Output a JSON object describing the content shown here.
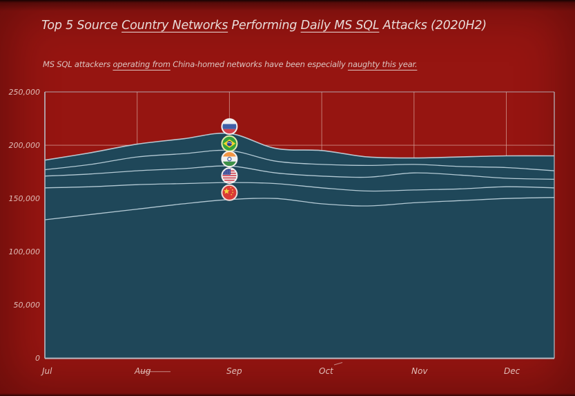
{
  "header": {
    "title_text": "Top 5 Source Country Networks Performing Daily MS SQL Attacks (2020H2)",
    "title_segments": [
      {
        "text": "Top 5 Source ",
        "underline": false
      },
      {
        "text": "Country Networks",
        "underline": true
      },
      {
        "text": " Performing ",
        "underline": false
      },
      {
        "text": "Daily MS SQL",
        "underline": true
      },
      {
        "text": " Attacks (2020H2)",
        "underline": false
      }
    ],
    "subtitle_text": "MS SQL attackers operating from China-homed networks have been especially naughty this year.",
    "subtitle_segments": [
      {
        "text": "MS SQL attackers ",
        "underline": false
      },
      {
        "text": "operating from",
        "underline": true
      },
      {
        "text": " China-homed networks have been especially ",
        "underline": false
      },
      {
        "text": "naughty this year.",
        "underline": true
      }
    ]
  },
  "colors": {
    "background": "#961511",
    "area_fill": "#1f4759",
    "boundary_line": "#c3d7e1",
    "grid_line": "#d49d96",
    "axis_line": "#b9bdc6",
    "tick_label": "#e0bdb7",
    "title_text": "#e9dbd8"
  },
  "chart_data": {
    "type": "area",
    "stacked": true,
    "title": "Top 5 Source Country Networks Performing Daily MS SQL Attacks (2020H2)",
    "subtitle": "MS SQL attackers operating from China-homed networks have been especially naughty this year.",
    "xlabel": "",
    "ylabel": "",
    "grid": true,
    "legend": "flag markers on each band at Sep",
    "x_categories": [
      "Jul",
      "Aug",
      "Sep",
      "Oct",
      "Nov",
      "Dec"
    ],
    "y_tick_labels": [
      "250,000",
      "200,000",
      "150,000",
      "100,000",
      "50,000",
      "0"
    ],
    "y_tick_values": [
      250000,
      200000,
      150000,
      100000,
      50000,
      0
    ],
    "ylim": [
      0,
      250000
    ],
    "flag_marker_month": "Sep",
    "series": [
      {
        "name": "Russia",
        "flag": "russia",
        "ring_color": "#f3f0f0",
        "values": [
          9000,
          12000,
          16000,
          13000,
          6000,
          11000
        ]
      },
      {
        "name": "Brazil",
        "flag": "brazil",
        "ring_color": "#e7ebaa",
        "values": [
          6000,
          13000,
          14500,
          11000,
          8000,
          10000
        ]
      },
      {
        "name": "India",
        "flag": "india",
        "ring_color": "#f3f0f0",
        "values": [
          11000,
          13000,
          15500,
          11000,
          16000,
          8000
        ]
      },
      {
        "name": "United States",
        "flag": "usa",
        "ring_color": "#f3f0f0",
        "values": [
          30000,
          23000,
          16000,
          15000,
          12000,
          11000
        ]
      },
      {
        "name": "China",
        "flag": "china",
        "ring_color": "#f2dcd9",
        "values": [
          130000,
          140000,
          149000,
          145000,
          146000,
          150000
        ]
      }
    ],
    "cumulative_samples": {
      "note": "stacked cumulative boundaries read off the plot, x in months from Jul 1",
      "x_months": [
        0,
        0.5,
        1,
        1.5,
        2,
        2.5,
        3,
        3.5,
        4,
        4.5,
        5,
        5.52
      ],
      "boundaries": [
        {
          "name": "China",
          "values": [
            130000,
            135000,
            140000,
            145000,
            149000,
            150000,
            145000,
            143000,
            146000,
            148000,
            150000,
            151000
          ]
        },
        {
          "name": "China+USA",
          "values": [
            160000,
            161000,
            163000,
            164000,
            165000,
            164000,
            160000,
            157000,
            158000,
            159000,
            161000,
            160000
          ]
        },
        {
          "name": "China+USA+India",
          "values": [
            171000,
            173000,
            176000,
            178000,
            180500,
            174000,
            171000,
            170000,
            174000,
            172000,
            169000,
            168000
          ]
        },
        {
          "name": "China+USA+India+Brazil",
          "values": [
            177000,
            182000,
            189000,
            192000,
            195000,
            185000,
            182000,
            181000,
            182000,
            180000,
            179000,
            176000
          ]
        },
        {
          "name": "Total",
          "values": [
            186000,
            193000,
            201000,
            206000,
            211000,
            197000,
            195000,
            189000,
            188000,
            189000,
            190000,
            190000
          ]
        }
      ]
    }
  }
}
